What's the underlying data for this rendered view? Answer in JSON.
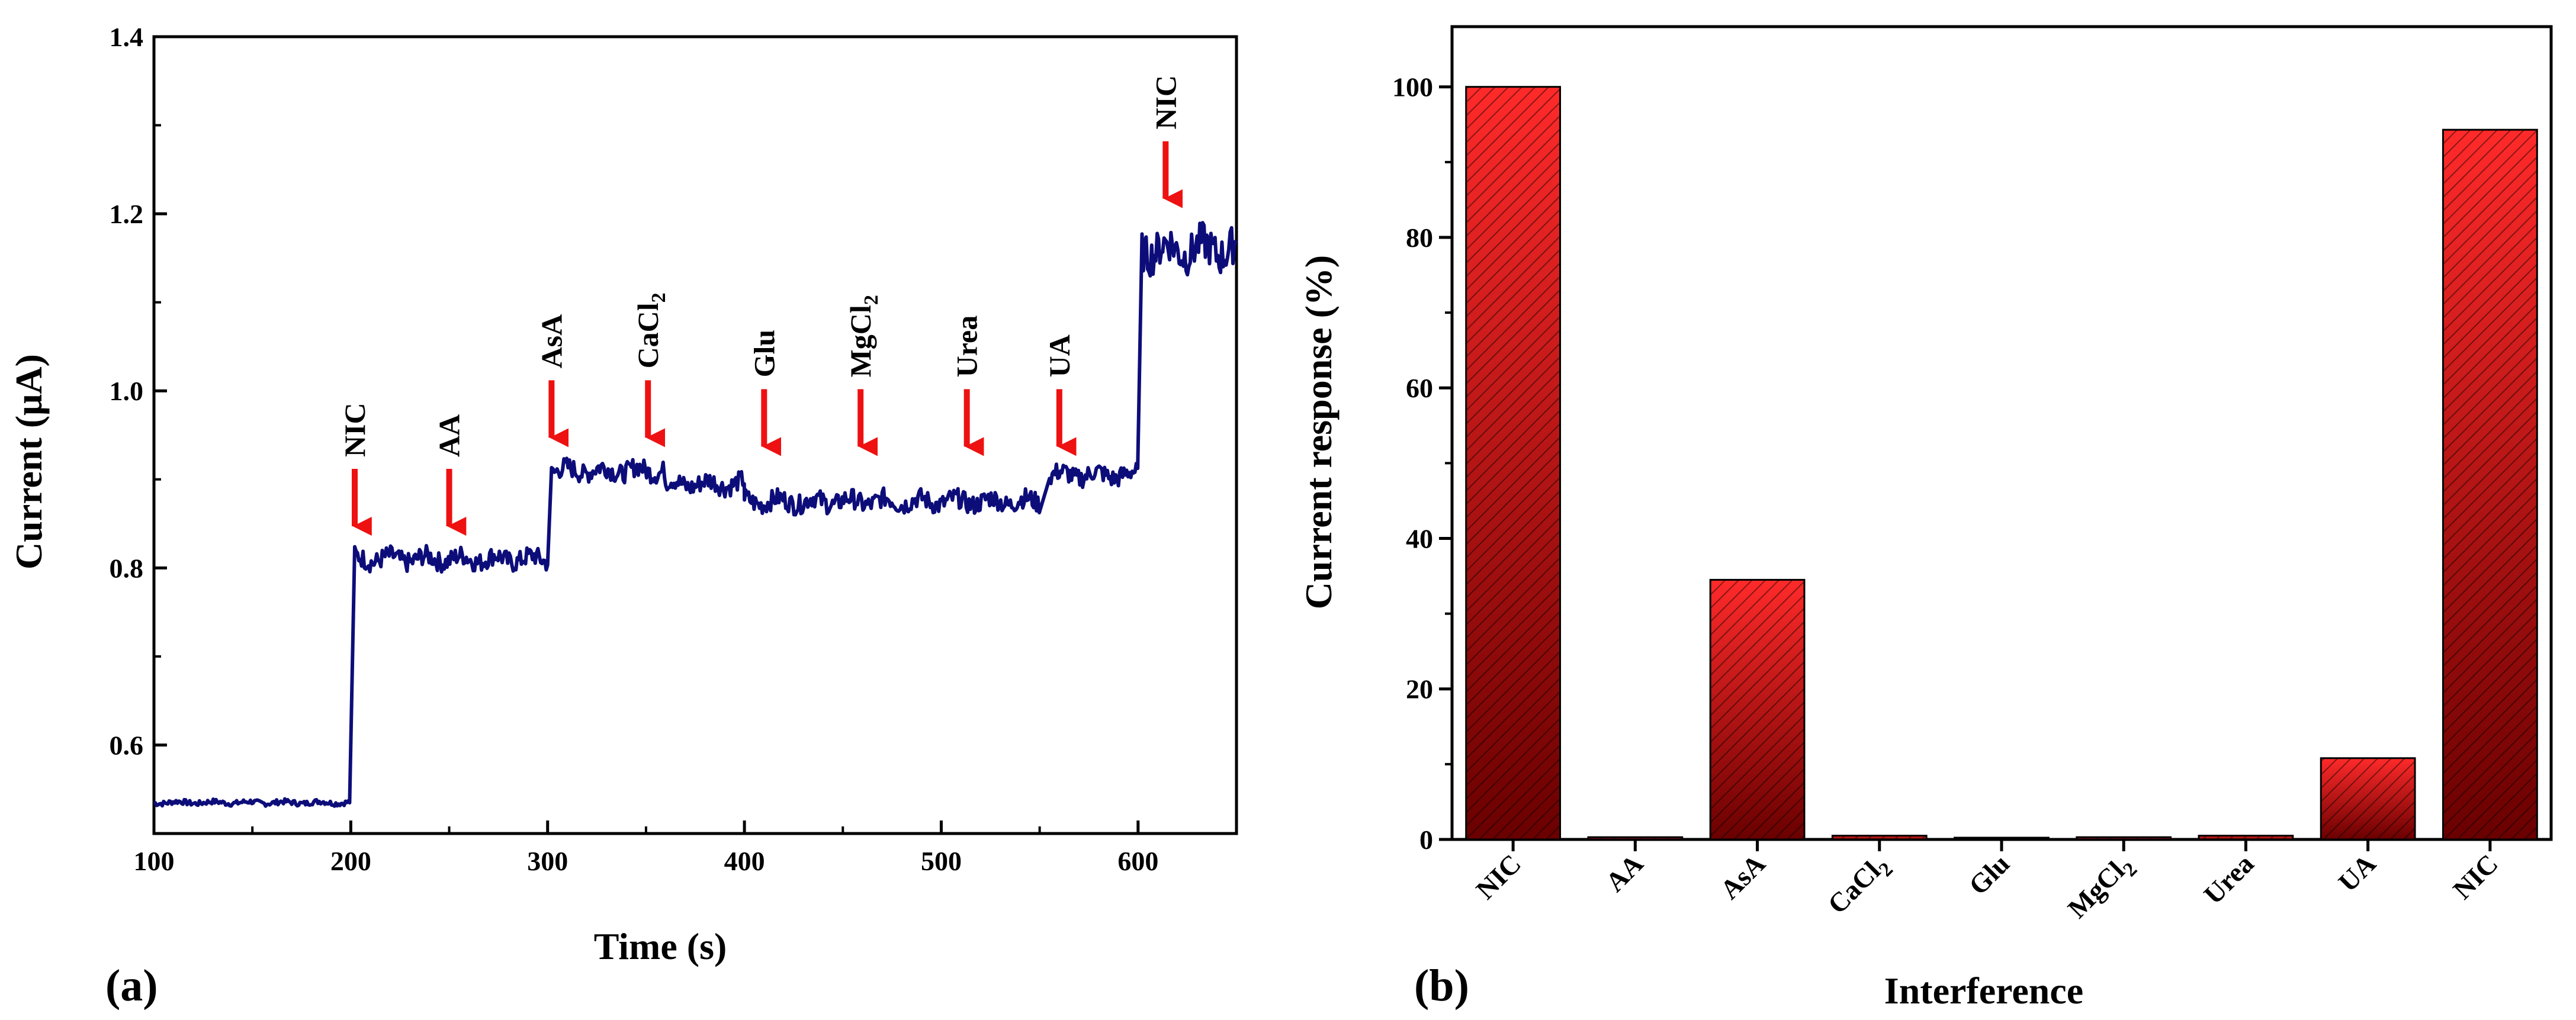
{
  "panel_a_label": "(a)",
  "panel_b_label": "(b)",
  "colors": {
    "trace": "#0d0d7a",
    "arrow": "#ee1111",
    "bar_top": "#ff2a2a",
    "bar_bottom": "#6a0000"
  },
  "chart_data": [
    {
      "type": "line",
      "panel": "(a)",
      "xlabel": "Time (s)",
      "ylabel": "Current (μA)",
      "xlim": [
        100,
        650
      ],
      "ylim": [
        0.5,
        1.4
      ],
      "xticks": [
        100,
        200,
        300,
        400,
        500,
        600
      ],
      "yticks": [
        0.6,
        0.8,
        1.0,
        1.2,
        1.4
      ],
      "ytick_labels": [
        "0.6",
        "0.8",
        "1.0",
        "1.2",
        "1.4"
      ],
      "series": [
        {
          "name": "amperometric response",
          "segments": [
            {
              "x0": 100,
              "x1": 200,
              "level": 0.535
            },
            {
              "x0": 202,
              "x1": 300,
              "level": 0.81
            },
            {
              "x0": 302,
              "x1": 360,
              "level": 0.91
            },
            {
              "x0": 360,
              "x1": 400,
              "level": 0.895
            },
            {
              "x0": 400,
              "x1": 550,
              "level": 0.875
            },
            {
              "x0": 555,
              "x1": 600,
              "level": 0.905
            },
            {
              "x0": 602,
              "x1": 650,
              "level": 1.16
            }
          ]
        }
      ],
      "annotations": [
        {
          "label": "NIC",
          "sub": "",
          "x": 202,
          "arrow_tip": 0.835
        },
        {
          "label": "AA",
          "sub": "",
          "x": 250,
          "arrow_tip": 0.835
        },
        {
          "label": "AsA",
          "sub": "",
          "x": 302,
          "arrow_tip": 0.935
        },
        {
          "label": "CaCl",
          "sub": "2",
          "x": 351,
          "arrow_tip": 0.935
        },
        {
          "label": "Glu",
          "sub": "",
          "x": 410,
          "arrow_tip": 0.925
        },
        {
          "label": "MgCl",
          "sub": "2",
          "x": 459,
          "arrow_tip": 0.925
        },
        {
          "label": "Urea",
          "sub": "",
          "x": 513,
          "arrow_tip": 0.925
        },
        {
          "label": "UA",
          "sub": "",
          "x": 560,
          "arrow_tip": 0.925
        },
        {
          "label": "NIC",
          "sub": "",
          "x": 614,
          "arrow_tip": 1.205
        }
      ]
    },
    {
      "type": "bar",
      "panel": "(b)",
      "xlabel": "Interference",
      "ylabel": "Current response (%)",
      "ylim": [
        0,
        108
      ],
      "yticks": [
        0,
        20,
        40,
        60,
        80,
        100
      ],
      "categories": [
        "NIC",
        "AA",
        "AsA",
        "CaCl",
        "Glu",
        "MgCl",
        "Urea",
        "UA",
        "NIC"
      ],
      "category_subscripts": [
        "",
        "",
        "",
        "2",
        "",
        "2",
        "",
        "",
        ""
      ],
      "values": [
        100,
        0.3,
        34.5,
        0.5,
        0.1,
        0.3,
        0.5,
        10.8,
        94.3
      ]
    }
  ]
}
